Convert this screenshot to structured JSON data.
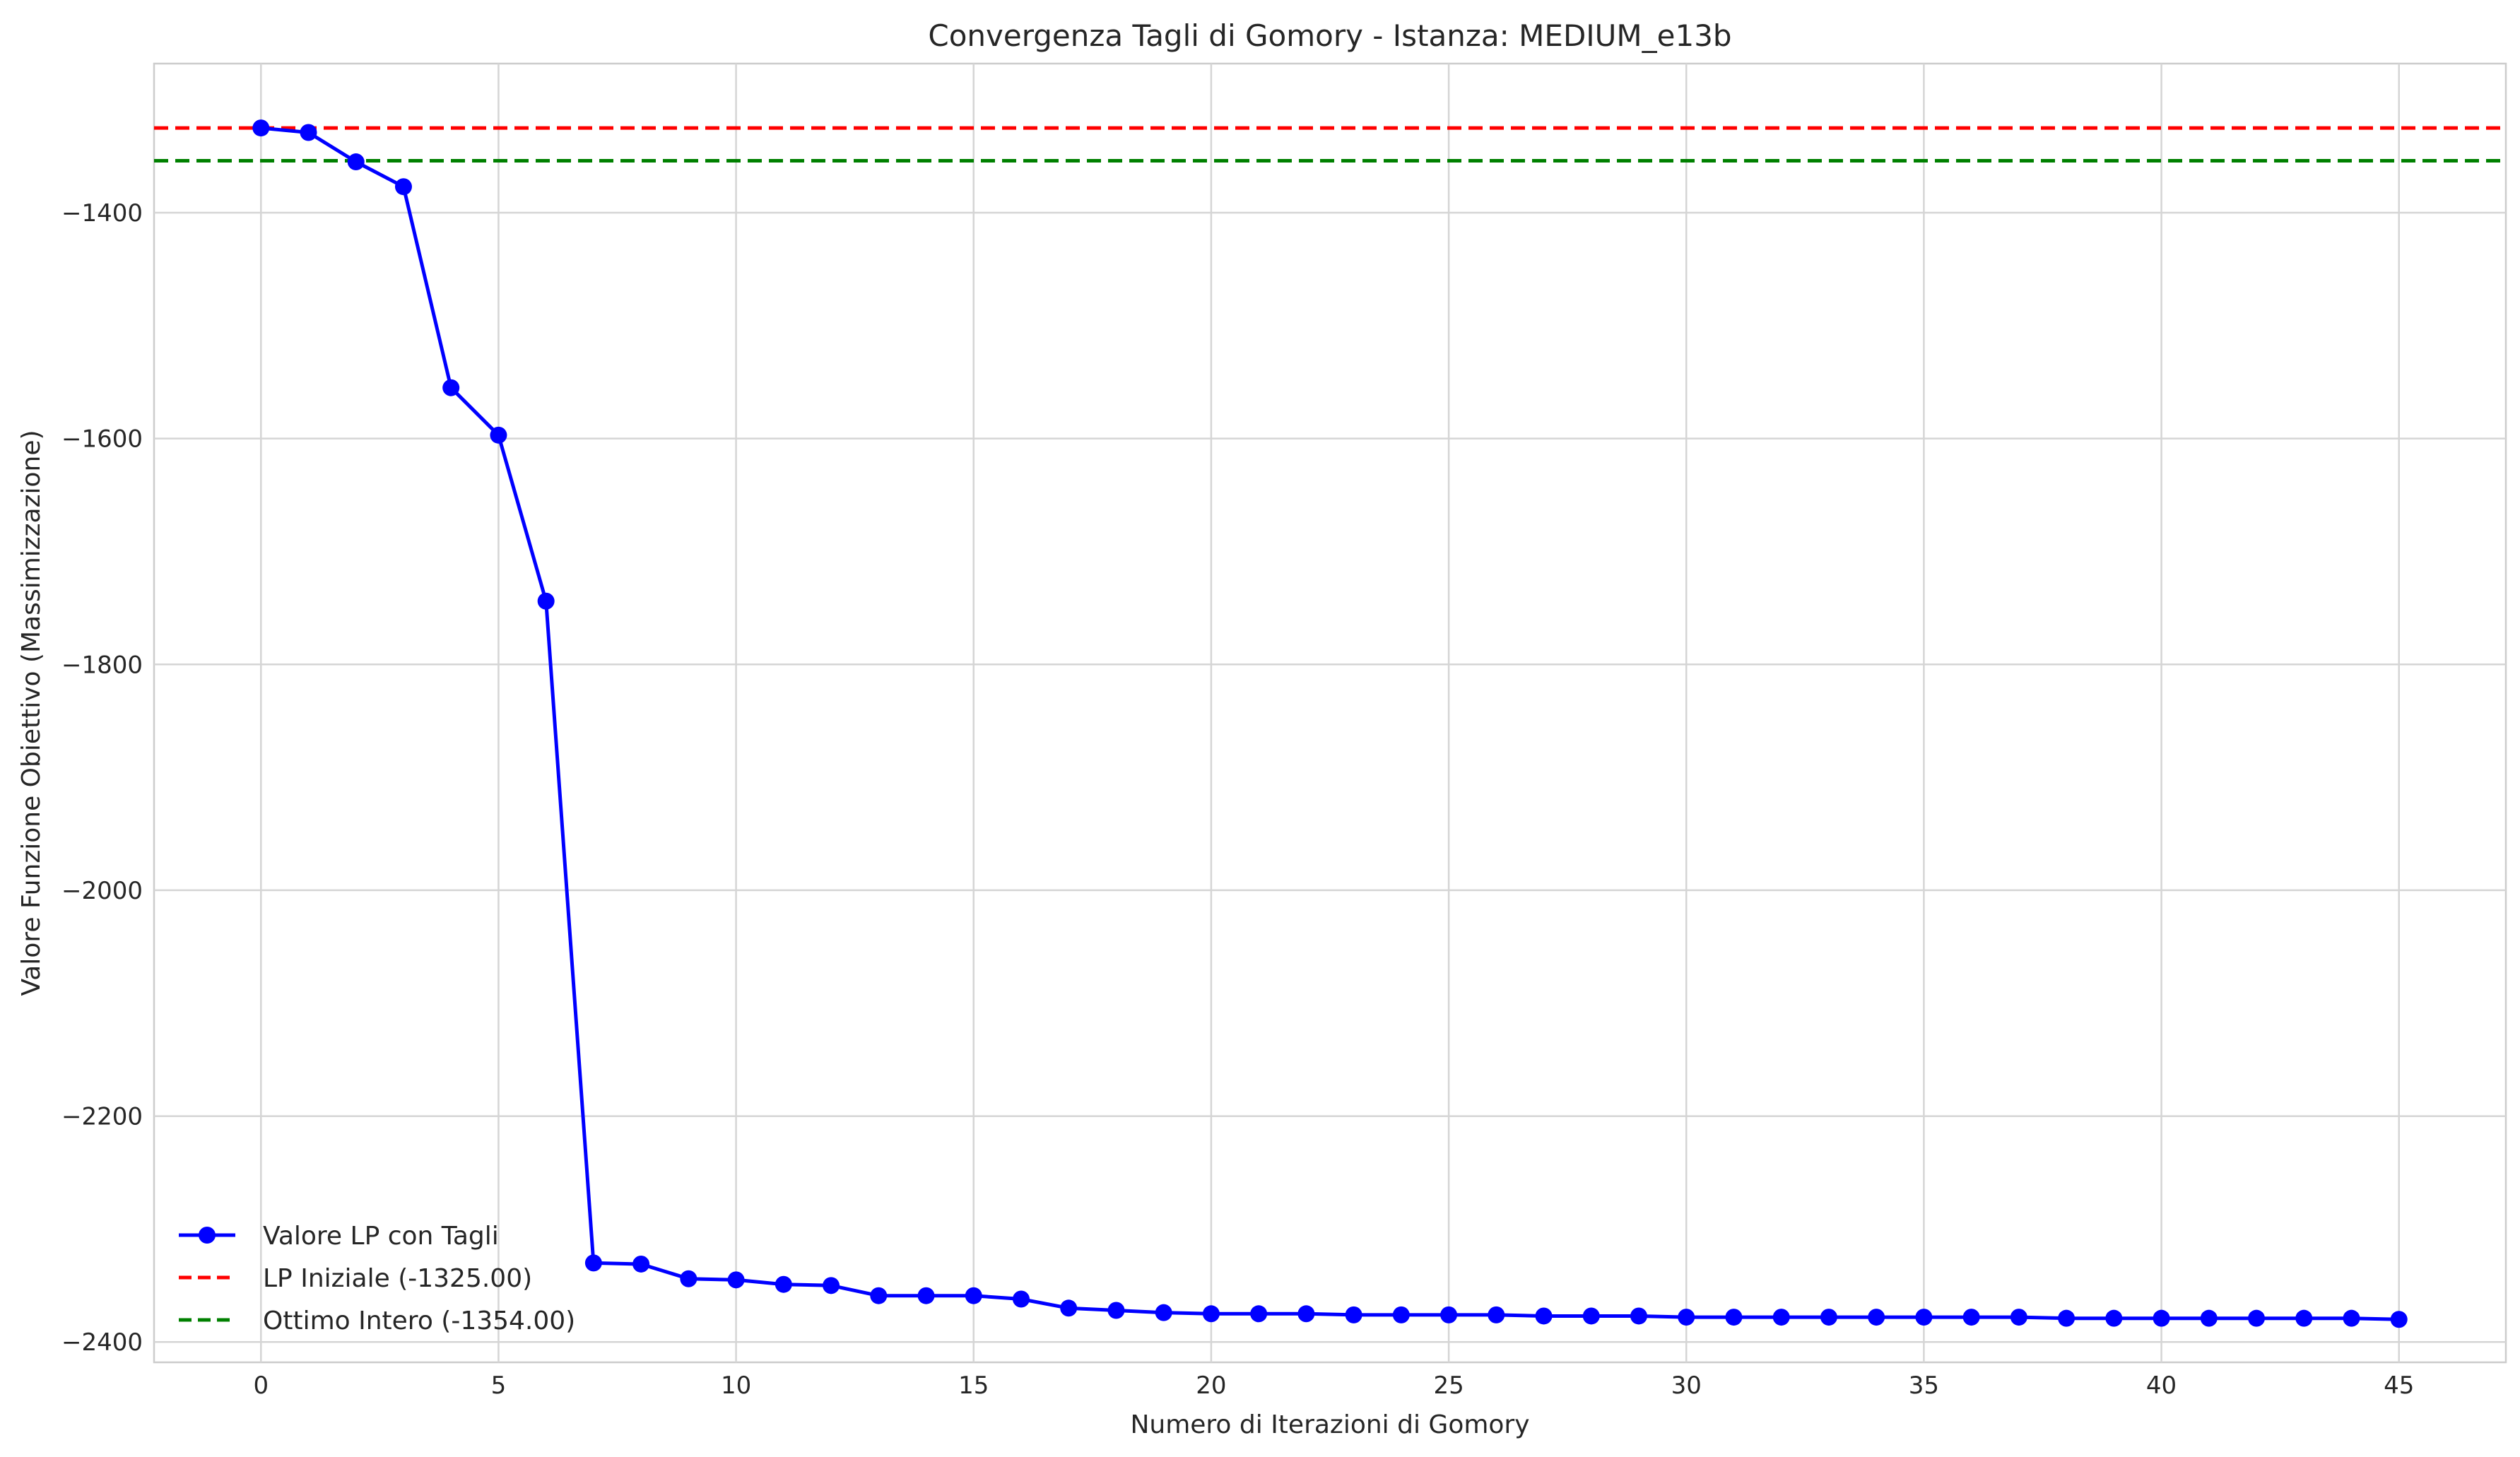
{
  "chart_data": {
    "type": "line",
    "title": "Convergenza Tagli di Gomory - Istanza: MEDIUM_e13b",
    "xlabel": "Numero di Iterazioni di Gomory",
    "ylabel": "Valore Funzione Obiettivo (Massimizzazione)",
    "xlim": [
      -2.25,
      47.25
    ],
    "ylim": [
      -2418,
      -1268
    ],
    "xticks": [
      0,
      5,
      10,
      15,
      20,
      25,
      30,
      35,
      40,
      45
    ],
    "yticks": [
      -1400,
      -1600,
      -1800,
      -2000,
      -2200,
      -2400
    ],
    "grid": true,
    "legend_position": "lower-left",
    "series": [
      {
        "name": "Valore LP con Tagli",
        "color": "#0000ff",
        "marker": "circle",
        "x": [
          0,
          1,
          2,
          3,
          4,
          5,
          6,
          7,
          8,
          9,
          10,
          11,
          12,
          13,
          14,
          15,
          16,
          17,
          18,
          19,
          20,
          21,
          22,
          23,
          24,
          25,
          26,
          27,
          28,
          29,
          30,
          31,
          32,
          33,
          34,
          35,
          36,
          37,
          38,
          39,
          40,
          41,
          42,
          43,
          44,
          45
        ],
        "y": [
          -1325,
          -1329,
          -1355,
          -1377,
          -1555,
          -1597,
          -1744,
          -2330,
          -2331,
          -2344,
          -2345,
          -2349,
          -2350,
          -2359,
          -2359,
          -2359,
          -2362,
          -2370,
          -2372,
          -2374,
          -2375,
          -2375,
          -2375,
          -2376,
          -2376,
          -2376,
          -2376,
          -2377,
          -2377,
          -2377,
          -2378,
          -2378,
          -2378,
          -2378,
          -2378,
          -2378,
          -2378,
          -2378,
          -2379,
          -2379,
          -2379,
          -2379,
          -2379,
          -2379,
          -2379,
          -2380
        ]
      }
    ],
    "reference_lines": [
      {
        "name": "LP Iniziale (-1325.00)",
        "y": -1325,
        "color": "#ff0000",
        "style": "dashed"
      },
      {
        "name": "Ottimo Intero (-1354.00)",
        "y": -1354,
        "color": "#008000",
        "style": "dashed"
      }
    ]
  }
}
